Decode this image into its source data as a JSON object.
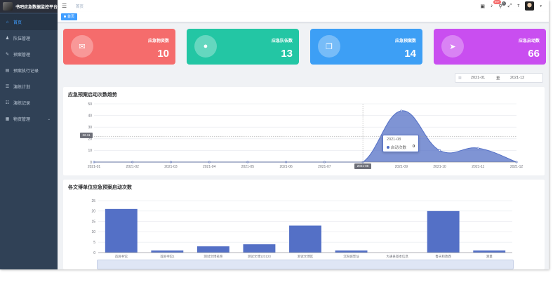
{
  "app": {
    "title": "书吧应急数据监控平台"
  },
  "sidebar": {
    "items": [
      {
        "label": "首页",
        "icon": "home-icon",
        "glyph": "⌂",
        "active": true
      },
      {
        "label": "队伍管理",
        "icon": "team-icon",
        "glyph": "♟"
      },
      {
        "label": "预案管理",
        "icon": "plan-icon",
        "glyph": "✎"
      },
      {
        "label": "预案执行记录",
        "icon": "record-icon",
        "glyph": "▤"
      },
      {
        "label": "演练计划",
        "icon": "drill-plan-icon",
        "glyph": "☰"
      },
      {
        "label": "演练记录",
        "icon": "drill-record-icon",
        "glyph": "☷"
      },
      {
        "label": "物资管理",
        "icon": "supplies-icon",
        "glyph": "▦",
        "has_children": true
      }
    ]
  },
  "navbar": {
    "breadcrumb": "首页",
    "message_badge": "99+",
    "notify_badge": "0"
  },
  "tags_view": {
    "active_tag": "首页"
  },
  "stats": [
    {
      "label": "应急物资数",
      "value": "10",
      "color": "#f56c6c",
      "icon": "inbox-icon",
      "glyph": "✉"
    },
    {
      "label": "应急队伍数",
      "value": "13",
      "color": "#23c6a4",
      "icon": "user-icon",
      "glyph": "●"
    },
    {
      "label": "应急预案数",
      "value": "14",
      "color": "#3d9ff5",
      "icon": "document-icon",
      "glyph": "❐"
    },
    {
      "label": "应急启动数",
      "value": "66",
      "color": "#c94ef0",
      "icon": "send-icon",
      "glyph": "➤"
    }
  ],
  "date_range": {
    "start": "2021-01",
    "separator": "至",
    "end": "2021-12"
  },
  "trend_panel": {
    "title": "应急预案启动次数趋势"
  },
  "bar_panel": {
    "title": "各文博单位应急预案启动次数"
  },
  "tooltip": {
    "title": "2021-08",
    "series": "启动次数",
    "value": "0"
  },
  "axis_pointer": {
    "y_label": "22.11",
    "x_label": "2021-08"
  },
  "chart_data": [
    {
      "type": "area",
      "title": "应急预案启动次数趋势",
      "x": [
        "2021-01",
        "2021-02",
        "2021-03",
        "2021-04",
        "2021-05",
        "2021-06",
        "2021-07",
        "2021-08",
        "2021-09",
        "2021-10",
        "2021-11",
        "2021-12"
      ],
      "series": [
        {
          "name": "启动次数",
          "values": [
            0,
            0,
            0,
            0,
            0,
            0,
            0,
            0,
            44,
            10,
            12,
            0
          ]
        }
      ],
      "ylim": [
        0,
        50
      ],
      "yticks": [
        0,
        10,
        20,
        30,
        40,
        50
      ],
      "grid": true,
      "color": "#5470c6"
    },
    {
      "type": "bar",
      "title": "各文博单位应急预案启动次数",
      "categories": [
        "首屏书馆",
        "首屏书馆1",
        "测试文博名称",
        "测试文博123123",
        "测试文博区",
        "沉阳城堡址",
        "大通县基本信息",
        "鲁天和政西",
        "测量"
      ],
      "values": [
        21,
        1,
        3,
        4,
        13,
        1,
        0,
        20,
        1
      ],
      "ylim": [
        0,
        25
      ],
      "yticks": [
        0,
        5,
        10,
        15,
        20,
        25
      ],
      "grid": true,
      "color": "#5470c6"
    }
  ]
}
